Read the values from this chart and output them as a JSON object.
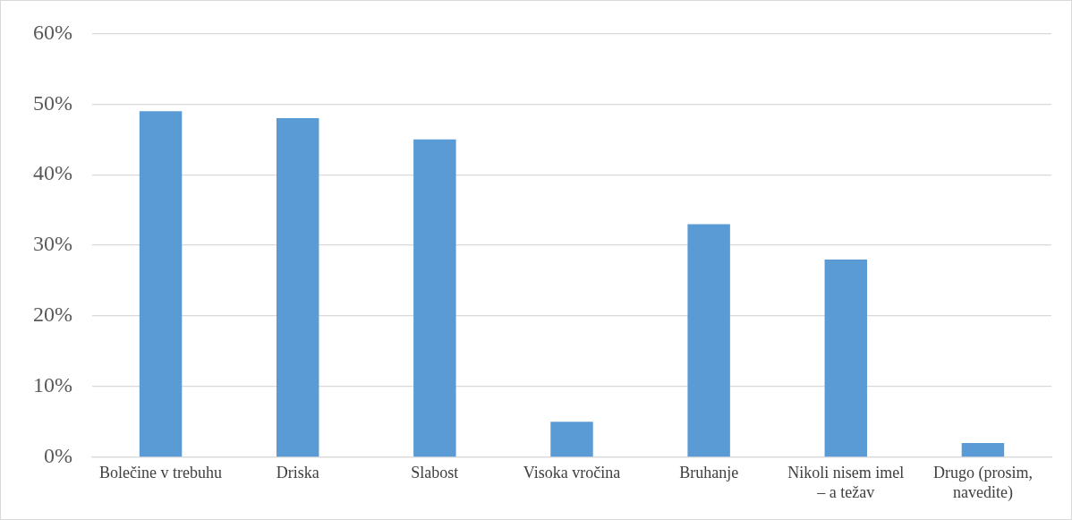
{
  "chart_data": {
    "type": "bar",
    "categories": [
      "Bolečine v trebuhu",
      "Driska",
      "Slabost",
      "Visoka vročina",
      "Bruhanje",
      "Nikoli nisem imel – a težav",
      "Drugo (prosim, navedite)"
    ],
    "values": [
      49,
      48,
      45,
      5,
      33,
      28,
      2
    ],
    "color": "#5b9bd5",
    "ylim": [
      0,
      60
    ],
    "yticks": [
      {
        "value": 0,
        "label": "0%"
      },
      {
        "value": 10,
        "label": "10%"
      },
      {
        "value": 20,
        "label": "20%"
      },
      {
        "value": 30,
        "label": "30%"
      },
      {
        "value": 40,
        "label": "40%"
      },
      {
        "value": 50,
        "label": "50%"
      },
      {
        "value": 60,
        "label": "60%"
      }
    ],
    "grid": "y",
    "legend": false
  }
}
